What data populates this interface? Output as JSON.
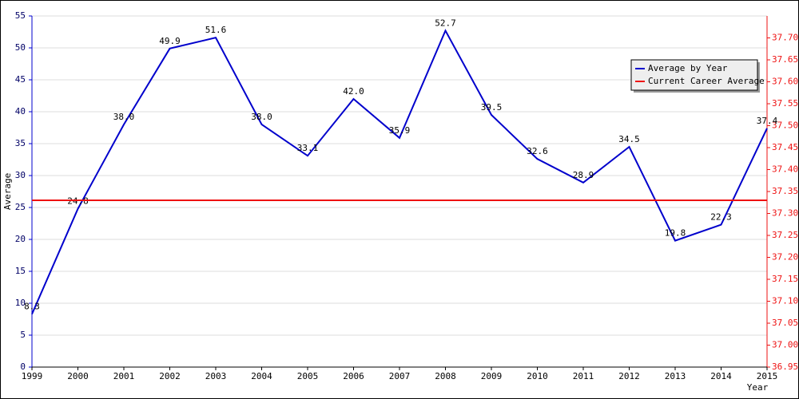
{
  "chart_data": {
    "type": "line",
    "x": [
      1999,
      2000,
      2001,
      2002,
      2003,
      2004,
      2005,
      2006,
      2007,
      2008,
      2009,
      2010,
      2011,
      2012,
      2013,
      2014,
      2015
    ],
    "x_label": "Year",
    "y_label": "Average",
    "series": [
      {
        "name": "Average by Year",
        "color": "#0000cc",
        "values": [
          8.3,
          24.8,
          38.0,
          49.9,
          51.6,
          38.0,
          33.1,
          42.0,
          35.9,
          52.7,
          39.5,
          32.6,
          28.9,
          34.5,
          19.8,
          22.3,
          37.4
        ],
        "value_labels": [
          "8.3",
          "24.8",
          "38.0",
          "49.9",
          "51.6",
          "38.0",
          "33.1",
          "42.0",
          "35.9",
          "52.7",
          "39.5",
          "32.6",
          "28.9",
          "34.5",
          "19.8",
          "22.3",
          "37.4"
        ]
      },
      {
        "name": "Current Career Average",
        "color": "#ee1111",
        "axis": "y2",
        "values": [
          37.33,
          37.33,
          37.33,
          37.33,
          37.33,
          37.33,
          37.33,
          37.33,
          37.33,
          37.33,
          37.33,
          37.33,
          37.33,
          37.33,
          37.33,
          37.33,
          37.33
        ]
      }
    ],
    "xlim": [
      1999,
      2015
    ],
    "xticks": [
      1999,
      2000,
      2001,
      2002,
      2003,
      2004,
      2005,
      2006,
      2007,
      2008,
      2009,
      2010,
      2011,
      2012,
      2013,
      2014,
      2015
    ],
    "ylim": [
      0,
      55
    ],
    "yticks": [
      0,
      5,
      10,
      15,
      20,
      25,
      30,
      35,
      40,
      45,
      50,
      55
    ],
    "y2lim": [
      36.95,
      37.75
    ],
    "y2ticks": [
      {
        "value": 36.95,
        "label": "36.95"
      },
      {
        "value": 37,
        "label": "37.00"
      },
      {
        "value": 37.05,
        "label": "37.05"
      },
      {
        "value": 37.1,
        "label": "37.10"
      },
      {
        "value": 37.15,
        "label": "37.15"
      },
      {
        "value": 37.2,
        "label": "37.20"
      },
      {
        "value": 37.25,
        "label": "37.25"
      },
      {
        "value": 37.3,
        "label": "37.30"
      },
      {
        "value": 37.35,
        "label": "37.35"
      },
      {
        "value": 37.4,
        "label": "37.40"
      },
      {
        "value": 37.45,
        "label": "37.45"
      },
      {
        "value": 37.5,
        "label": "37.50"
      },
      {
        "value": 37.55,
        "label": "37.55"
      },
      {
        "value": 37.6,
        "label": "37.60"
      },
      {
        "value": 37.65,
        "label": "37.65"
      },
      {
        "value": 37.7,
        "label": "37.70"
      }
    ],
    "grid": true,
    "legend": "top-right"
  }
}
